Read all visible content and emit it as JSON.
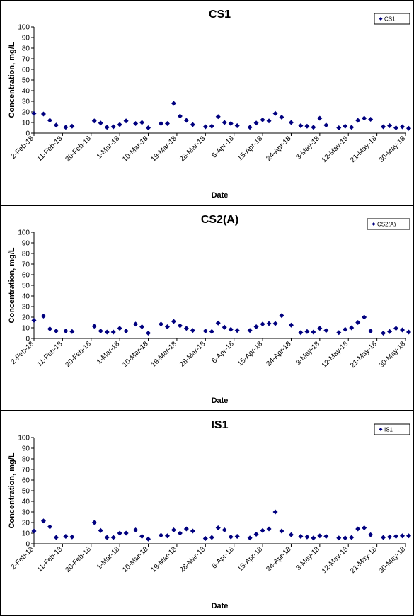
{
  "chart_data": [
    {
      "type": "scatter",
      "title": "CS1",
      "xlabel": "Date",
      "ylabel": "Concentration, mg/L",
      "ylim": [
        0,
        100
      ],
      "yticks": [
        0,
        10,
        20,
        30,
        40,
        50,
        60,
        70,
        80,
        90,
        100
      ],
      "xlim": [
        "2018-02-02",
        "2018-05-30"
      ],
      "xticks": [
        "2-Feb-18",
        "11-Feb-18",
        "20-Feb-18",
        "1-Mar-18",
        "10-Mar-18",
        "19-Mar-18",
        "28-Mar-18",
        "6-Apr-18",
        "15-Apr-18",
        "24-Apr-18",
        "3-May-18",
        "12-May-18",
        "21-May-18",
        "30-May-18"
      ],
      "legend": "top-right",
      "grid": false,
      "color": "#00007F",
      "series": [
        {
          "name": "CS1",
          "points": [
            [
              "2018-02-02",
              18.5
            ],
            [
              "2018-02-05",
              18
            ],
            [
              "2018-02-07",
              12
            ],
            [
              "2018-02-09",
              7.5
            ],
            [
              "2018-02-12",
              5.5
            ],
            [
              "2018-02-14",
              6.5
            ],
            [
              "2018-02-21",
              11.5
            ],
            [
              "2018-02-23",
              9.5
            ],
            [
              "2018-02-25",
              5.5
            ],
            [
              "2018-02-27",
              6
            ],
            [
              "2018-03-01",
              8
            ],
            [
              "2018-03-03",
              11.5
            ],
            [
              "2018-03-06",
              9
            ],
            [
              "2018-03-08",
              10
            ],
            [
              "2018-03-10",
              5
            ],
            [
              "2018-03-14",
              9
            ],
            [
              "2018-03-16",
              9
            ],
            [
              "2018-03-18",
              28
            ],
            [
              "2018-03-20",
              16
            ],
            [
              "2018-03-22",
              12
            ],
            [
              "2018-03-24",
              8
            ],
            [
              "2018-03-28",
              6
            ],
            [
              "2018-03-30",
              6.5
            ],
            [
              "2018-04-01",
              15.5
            ],
            [
              "2018-04-03",
              10
            ],
            [
              "2018-04-05",
              9
            ],
            [
              "2018-04-07",
              7
            ],
            [
              "2018-04-11",
              5.5
            ],
            [
              "2018-04-13",
              9.5
            ],
            [
              "2018-04-15",
              12.5
            ],
            [
              "2018-04-17",
              11.5
            ],
            [
              "2018-04-19",
              18.5
            ],
            [
              "2018-04-21",
              15
            ],
            [
              "2018-04-24",
              10
            ],
            [
              "2018-04-27",
              7
            ],
            [
              "2018-04-29",
              6.5
            ],
            [
              "2018-05-01",
              5.5
            ],
            [
              "2018-05-03",
              14
            ],
            [
              "2018-05-05",
              7.5
            ],
            [
              "2018-05-09",
              5
            ],
            [
              "2018-05-11",
              6.5
            ],
            [
              "2018-05-13",
              5.5
            ],
            [
              "2018-05-15",
              12
            ],
            [
              "2018-05-17",
              14
            ],
            [
              "2018-05-19",
              13
            ],
            [
              "2018-05-23",
              6
            ],
            [
              "2018-05-25",
              7
            ],
            [
              "2018-05-27",
              5
            ],
            [
              "2018-05-29",
              6
            ],
            [
              "2018-05-31",
              4.5
            ]
          ]
        }
      ]
    },
    {
      "type": "scatter",
      "title": "CS2(A)",
      "xlabel": "Date",
      "ylabel": "Concentration, mg/L",
      "ylim": [
        0,
        100
      ],
      "yticks": [
        0,
        10,
        20,
        30,
        40,
        50,
        60,
        70,
        80,
        90,
        100
      ],
      "xlim": [
        "2018-02-02",
        "2018-05-30"
      ],
      "xticks": [
        "2-Feb-18",
        "11-Feb-18",
        "20-Feb-18",
        "1-Mar-18",
        "10-Mar-18",
        "19-Mar-18",
        "28-Mar-18",
        "6-Apr-18",
        "15-Apr-18",
        "24-Apr-18",
        "3-May-18",
        "12-May-18",
        "21-May-18",
        "30-May-18"
      ],
      "legend": "top-right",
      "grid": false,
      "color": "#00007F",
      "series": [
        {
          "name": "CS2(A)",
          "points": [
            [
              "2018-02-02",
              17
            ],
            [
              "2018-02-05",
              21
            ],
            [
              "2018-02-07",
              9
            ],
            [
              "2018-02-09",
              7
            ],
            [
              "2018-02-12",
              7
            ],
            [
              "2018-02-14",
              6.5
            ],
            [
              "2018-02-21",
              11.5
            ],
            [
              "2018-02-23",
              7
            ],
            [
              "2018-02-25",
              6
            ],
            [
              "2018-02-27",
              6
            ],
            [
              "2018-03-01",
              9.5
            ],
            [
              "2018-03-03",
              7
            ],
            [
              "2018-03-06",
              13.5
            ],
            [
              "2018-03-08",
              11
            ],
            [
              "2018-03-10",
              5
            ],
            [
              "2018-03-14",
              13.5
            ],
            [
              "2018-03-16",
              11
            ],
            [
              "2018-03-18",
              16
            ],
            [
              "2018-03-20",
              12
            ],
            [
              "2018-03-22",
              9.5
            ],
            [
              "2018-03-24",
              7.5
            ],
            [
              "2018-03-28",
              7
            ],
            [
              "2018-03-30",
              6.5
            ],
            [
              "2018-04-01",
              14.5
            ],
            [
              "2018-04-03",
              10.5
            ],
            [
              "2018-04-05",
              8.5
            ],
            [
              "2018-04-07",
              7.5
            ],
            [
              "2018-04-11",
              7.5
            ],
            [
              "2018-04-13",
              11
            ],
            [
              "2018-04-15",
              13.5
            ],
            [
              "2018-04-17",
              14
            ],
            [
              "2018-04-19",
              14
            ],
            [
              "2018-04-21",
              21.5
            ],
            [
              "2018-04-24",
              12.5
            ],
            [
              "2018-04-27",
              5.5
            ],
            [
              "2018-04-29",
              6.5
            ],
            [
              "2018-05-01",
              6
            ],
            [
              "2018-05-03",
              9.5
            ],
            [
              "2018-05-05",
              7.5
            ],
            [
              "2018-05-09",
              5.5
            ],
            [
              "2018-05-11",
              8.5
            ],
            [
              "2018-05-13",
              10
            ],
            [
              "2018-05-15",
              15
            ],
            [
              "2018-05-17",
              20
            ],
            [
              "2018-05-19",
              7
            ],
            [
              "2018-05-23",
              5
            ],
            [
              "2018-05-25",
              6.5
            ],
            [
              "2018-05-27",
              9.5
            ],
            [
              "2018-05-29",
              8
            ],
            [
              "2018-05-31",
              6
            ]
          ]
        }
      ]
    },
    {
      "type": "scatter",
      "title": "IS1",
      "xlabel": "Date",
      "ylabel": "Concentration, mg/L",
      "ylim": [
        0,
        100
      ],
      "yticks": [
        0,
        10,
        20,
        30,
        40,
        50,
        60,
        70,
        80,
        90,
        100
      ],
      "xlim": [
        "2018-02-02",
        "2018-05-30"
      ],
      "xticks": [
        "2-Feb-18",
        "11-Feb-18",
        "20-Feb-18",
        "1-Mar-18",
        "10-Mar-18",
        "19-Mar-18",
        "28-Mar-18",
        "6-Apr-18",
        "15-Apr-18",
        "24-Apr-18",
        "3-May-18",
        "12-May-18",
        "21-May-18",
        "30-May-18"
      ],
      "legend": "top-right",
      "grid": false,
      "color": "#00007F",
      "series": [
        {
          "name": "IS1",
          "points": [
            [
              "2018-02-02",
              12
            ],
            [
              "2018-02-05",
              21.5
            ],
            [
              "2018-02-07",
              16
            ],
            [
              "2018-02-09",
              6
            ],
            [
              "2018-02-12",
              7
            ],
            [
              "2018-02-14",
              6.5
            ],
            [
              "2018-02-21",
              20
            ],
            [
              "2018-02-23",
              12.5
            ],
            [
              "2018-02-25",
              6
            ],
            [
              "2018-02-27",
              6
            ],
            [
              "2018-03-01",
              10
            ],
            [
              "2018-03-03",
              10
            ],
            [
              "2018-03-06",
              13
            ],
            [
              "2018-03-08",
              7
            ],
            [
              "2018-03-10",
              4.5
            ],
            [
              "2018-03-14",
              8
            ],
            [
              "2018-03-16",
              7.5
            ],
            [
              "2018-03-18",
              13
            ],
            [
              "2018-03-20",
              10
            ],
            [
              "2018-03-22",
              14
            ],
            [
              "2018-03-24",
              12
            ],
            [
              "2018-03-28",
              5
            ],
            [
              "2018-03-30",
              6
            ],
            [
              "2018-04-01",
              15
            ],
            [
              "2018-04-03",
              13
            ],
            [
              "2018-04-05",
              6.5
            ],
            [
              "2018-04-07",
              7
            ],
            [
              "2018-04-11",
              5.5
            ],
            [
              "2018-04-13",
              9
            ],
            [
              "2018-04-15",
              12.5
            ],
            [
              "2018-04-17",
              14
            ],
            [
              "2018-04-19",
              30
            ],
            [
              "2018-04-21",
              12
            ],
            [
              "2018-04-24",
              8.5
            ],
            [
              "2018-04-27",
              7
            ],
            [
              "2018-04-29",
              6.5
            ],
            [
              "2018-05-01",
              5.5
            ],
            [
              "2018-05-03",
              7.5
            ],
            [
              "2018-05-05",
              7
            ],
            [
              "2018-05-09",
              5.5
            ],
            [
              "2018-05-11",
              5.5
            ],
            [
              "2018-05-13",
              6
            ],
            [
              "2018-05-15",
              14
            ],
            [
              "2018-05-17",
              15
            ],
            [
              "2018-05-19",
              8.5
            ],
            [
              "2018-05-23",
              6
            ],
            [
              "2018-05-25",
              6.5
            ],
            [
              "2018-05-27",
              7
            ],
            [
              "2018-05-29",
              7.5
            ],
            [
              "2018-05-31",
              7.5
            ]
          ]
        }
      ]
    }
  ]
}
